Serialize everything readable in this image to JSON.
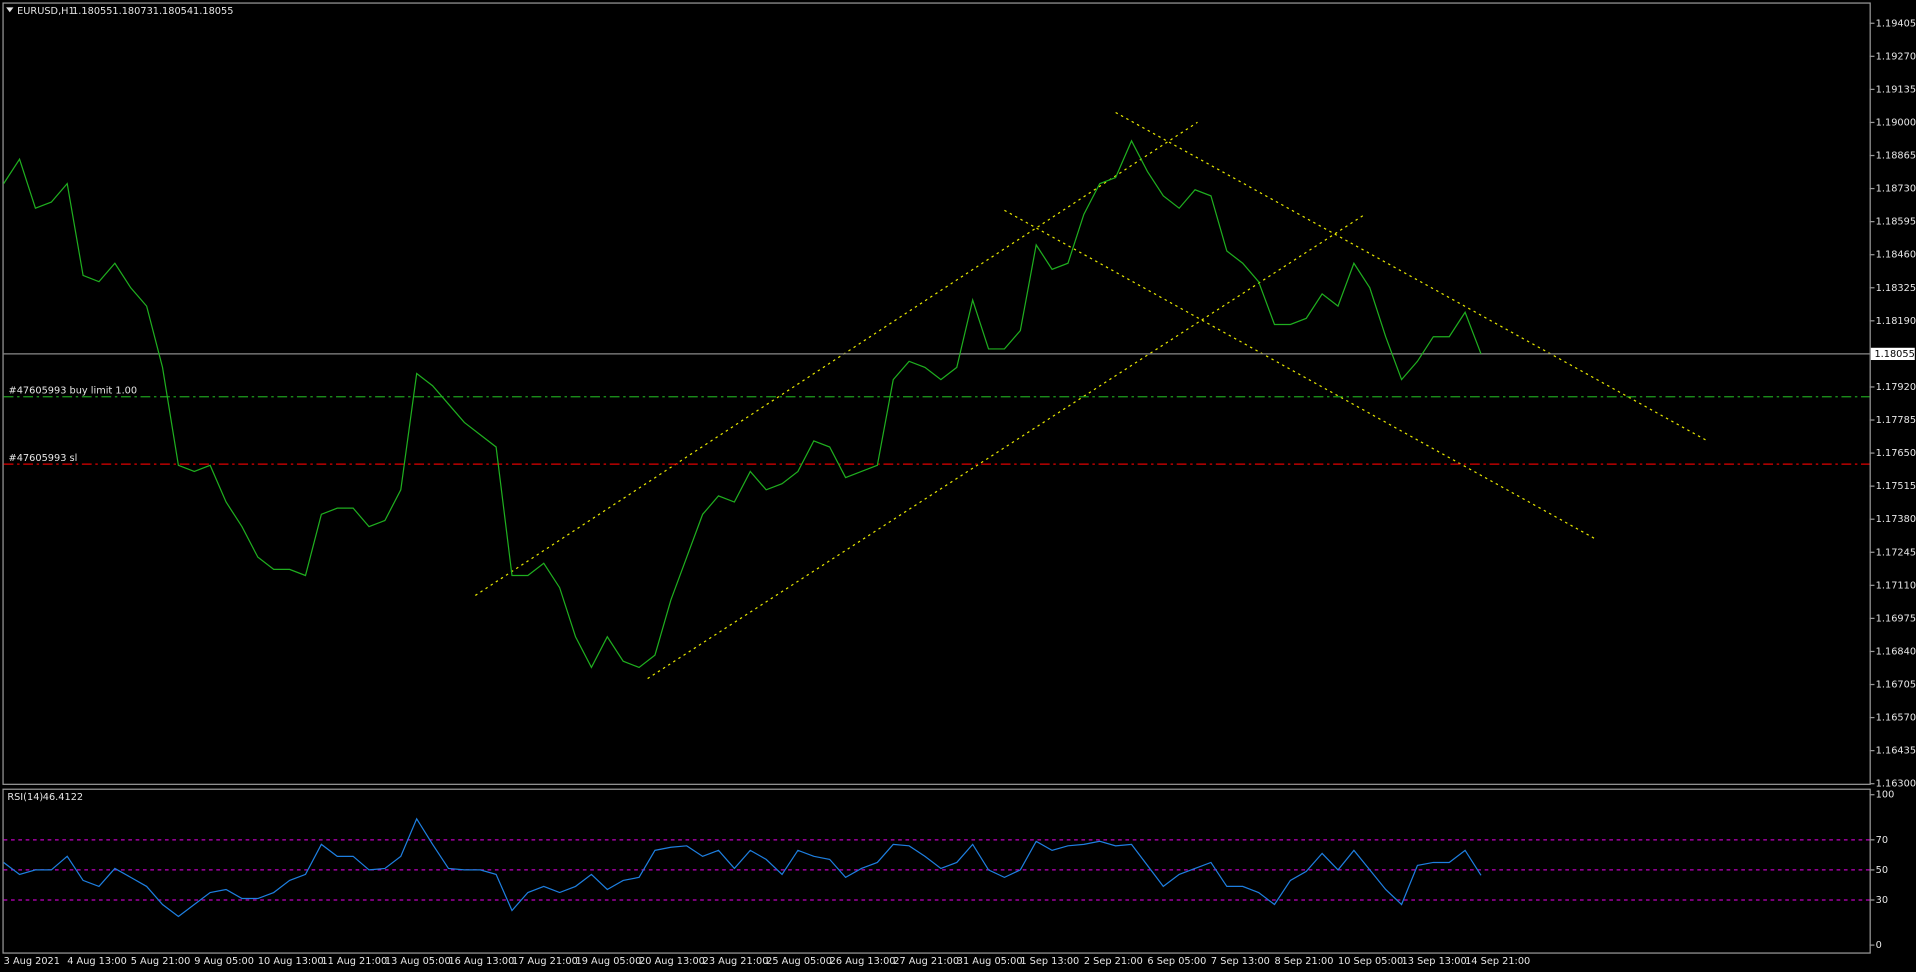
{
  "chart_data": [
    {
      "type": "line",
      "title": "EURUSD,H1",
      "ohlc": [
        1.18055,
        1.18073,
        1.18054,
        1.18055
      ],
      "color": "#1fae1f",
      "categories": [
        "3 Aug 2021",
        null,
        null,
        null,
        "4 Aug 13:00",
        null,
        null,
        null,
        "5 Aug 21:00",
        null,
        null,
        null,
        "9 Aug 05:00",
        null,
        null,
        null,
        "10 Aug 13:00",
        null,
        null,
        null,
        "11 Aug 21:00",
        null,
        null,
        null,
        "13 Aug 05:00",
        null,
        null,
        null,
        "16 Aug 13:00",
        null,
        null,
        null,
        "17 Aug 21:00",
        null,
        null,
        null,
        "19 Aug 05:00",
        null,
        null,
        null,
        "20 Aug 13:00",
        null,
        null,
        null,
        "23 Aug 21:00",
        null,
        null,
        null,
        "25 Aug 05:00",
        null,
        null,
        null,
        "26 Aug 13:00",
        null,
        null,
        null,
        "27 Aug 21:00",
        null,
        null,
        null,
        "31 Aug 05:00",
        null,
        null,
        null,
        "1 Sep 13:00",
        null,
        null,
        null,
        "2 Sep 21:00",
        null,
        null,
        null,
        "6 Sep 05:00",
        null,
        null,
        null,
        "7 Sep 13:00",
        null,
        null,
        null,
        "8 Sep 21:00",
        null,
        null,
        null,
        "10 Sep 05:00",
        null,
        null,
        null,
        "13 Sep 13:00",
        null,
        null,
        null,
        "14 Sep 21:00",
        null
      ],
      "values": [
        1.1875,
        1.1885,
        1.1865,
        1.18675,
        1.1875,
        1.18375,
        1.1835,
        1.18425,
        1.18325,
        1.1825,
        1.18,
        1.176,
        1.17575,
        1.176,
        1.1745,
        1.1735,
        1.17225,
        1.17175,
        1.17175,
        1.1715,
        1.174,
        1.17425,
        1.17425,
        1.1735,
        1.17375,
        1.175,
        1.17975,
        1.17925,
        1.1785,
        1.17775,
        1.17725,
        1.17675,
        1.1715,
        1.1715,
        1.172,
        1.171,
        1.169,
        1.16775,
        1.169,
        1.168,
        1.16775,
        1.16825,
        1.1705,
        1.17225,
        1.174,
        1.17475,
        1.1745,
        1.17575,
        1.175,
        1.17525,
        1.17575,
        1.177,
        1.17675,
        1.1755,
        1.17575,
        1.176,
        1.1795,
        1.18025,
        1.18,
        1.1795,
        1.18,
        1.18275,
        1.18075,
        1.18075,
        1.1815,
        1.185,
        1.184,
        1.18425,
        1.18625,
        1.1875,
        1.18775,
        1.18925,
        1.188,
        1.187,
        1.1865,
        1.18725,
        1.187,
        1.18475,
        1.18425,
        1.1835,
        1.18175,
        1.18175,
        1.182,
        1.183,
        1.1825,
        1.18425,
        1.18325,
        1.18125,
        1.1795,
        1.18025,
        1.18125,
        1.18125,
        1.18225,
        1.18055
      ],
      "ylim": [
        1.163,
        1.19485
      ],
      "yticks": [
        1.19405,
        {
          "value": 1.1927,
          "label": "1.19270"
        },
        1.19135,
        {
          "value": 1.19,
          "label": "1.19000"
        },
        1.18865,
        {
          "value": 1.1873,
          "label": "1.18730"
        },
        1.18595,
        {
          "value": 1.1846,
          "label": "1.18460"
        },
        1.18325,
        {
          "value": 1.1819,
          "label": "1.18190"
        },
        {
          "value": 1.1792,
          "label": "1.17920"
        },
        1.17785,
        {
          "value": 1.1765,
          "label": "1.17650"
        },
        1.17515,
        {
          "value": 1.1738,
          "label": "1.17380"
        },
        1.17245,
        {
          "value": 1.1711,
          "label": "1.17110"
        },
        1.16975,
        {
          "value": 1.1684,
          "label": "1.16840"
        },
        1.16705,
        {
          "value": 1.1657,
          "label": "1.16570"
        },
        1.16435,
        {
          "value": 1.163,
          "label": "1.16300"
        }
      ],
      "orders": [
        {
          "label": "#47605993 buy limit 1.00",
          "price": 1.1788,
          "color": "#1e9e1e"
        },
        {
          "label": "#47605993 sl",
          "price": 1.17605,
          "color": "#e00000"
        }
      ]
    },
    {
      "type": "line",
      "title": "RSI(14)",
      "color": "#1e7fe0",
      "values": [
        55,
        47,
        50,
        50,
        59,
        43,
        39,
        51,
        45,
        39,
        27,
        19,
        27,
        35,
        37,
        31,
        31,
        35,
        43,
        47,
        67,
        59,
        59,
        50,
        51,
        59,
        84,
        67,
        51,
        50,
        50,
        47,
        23,
        35,
        39,
        35,
        39,
        47,
        37,
        43,
        45,
        63,
        65,
        66,
        59,
        63,
        51,
        63,
        57,
        47,
        63,
        59,
        57,
        45,
        51,
        55,
        67,
        66,
        59,
        51,
        55,
        67,
        50,
        45,
        50,
        69,
        63,
        66,
        67,
        69,
        66,
        67,
        53,
        39,
        47,
        51,
        55,
        39,
        39,
        35,
        27,
        43,
        49,
        61,
        50,
        63,
        50,
        37,
        27,
        53,
        55,
        55,
        63,
        46.4122
      ],
      "ylim": [
        0,
        100
      ],
      "yticks": [
        100,
        70,
        50,
        30,
        0
      ],
      "levels": [
        70,
        50,
        30
      ],
      "level_color": "#c000c0"
    }
  ]
}
